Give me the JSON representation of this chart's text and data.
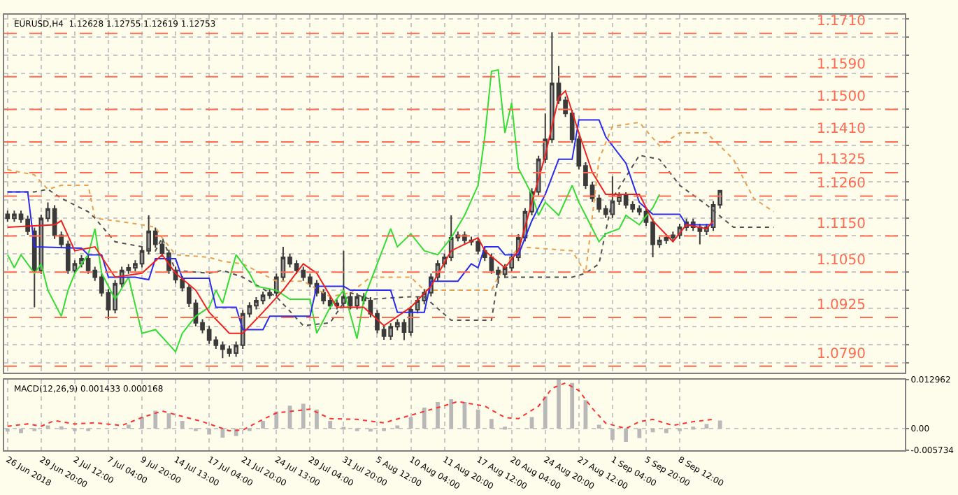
{
  "chart_data": [
    {
      "type": "candlestick",
      "title": "EURUSD,H4  1.12628 1.12755 1.12619 1.12753",
      "color": "#3a3a3a",
      "grid": true,
      "tick_labels": false,
      "ylim": [
        1.0772,
        1.1761
      ],
      "categories": [
        null,
        null,
        null,
        null,
        null,
        null,
        null,
        null,
        null,
        null,
        null,
        null,
        null,
        null,
        null,
        null,
        null,
        null,
        null,
        null,
        null,
        null,
        null,
        null,
        null,
        null,
        null,
        null,
        null,
        null,
        null,
        null,
        null,
        null,
        null,
        null,
        null,
        null,
        null,
        null,
        null,
        null,
        null,
        null,
        null,
        null,
        null,
        null,
        null,
        null,
        null,
        null,
        null,
        null,
        null,
        null,
        null,
        null,
        null,
        null,
        null,
        null,
        null,
        null,
        null,
        null,
        null,
        null,
        null,
        null,
        null,
        null,
        null,
        null,
        null,
        null,
        null,
        null,
        null,
        null,
        null,
        null,
        null,
        null,
        null,
        null,
        null,
        null,
        null,
        null,
        null,
        null,
        null,
        null,
        null,
        null,
        null,
        null,
        null,
        null,
        null,
        null,
        null,
        null,
        null,
        null,
        null,
        null,
        null,
        null,
        null,
        null,
        null,
        null,
        null,
        null,
        null,
        null,
        null,
        null,
        null,
        null,
        null,
        null,
        null,
        null,
        null,
        null,
        null,
        null,
        null,
        null,
        null,
        null
      ],
      "ohlc": [
        [
          1.121,
          1.122,
          1.1189,
          1.1199
        ],
        [
          1.1199,
          1.122,
          1.1189,
          1.121
        ],
        [
          1.121,
          1.122,
          1.1186,
          1.1196
        ],
        [
          1.1196,
          1.1206,
          1.1153,
          1.1163
        ],
        [
          1.1163,
          1.1173,
          1.0953,
          1.1055
        ],
        [
          1.1055,
          1.1209,
          1.1045,
          1.1199
        ],
        [
          1.1199,
          1.1243,
          1.1189,
          1.1225
        ],
        [
          1.1225,
          1.1235,
          1.1142,
          1.1152
        ],
        [
          1.1152,
          1.1162,
          1.1117,
          1.1127
        ],
        [
          1.1127,
          1.1137,
          1.1045,
          1.1055
        ],
        [
          1.1055,
          1.1083,
          1.1045,
          1.1073
        ],
        [
          1.1073,
          1.1097,
          1.1063,
          1.1087
        ],
        [
          1.1087,
          1.1097,
          1.1045,
          1.1055
        ],
        [
          1.1055,
          1.1065,
          1.1026,
          1.1036
        ],
        [
          1.1036,
          1.1046,
          1.0983,
          1.0993
        ],
        [
          1.0993,
          1.1003,
          1.092,
          1.0946
        ],
        [
          1.0946,
          1.1028,
          1.0936,
          1.1018
        ],
        [
          1.1018,
          1.1065,
          1.1008,
          1.1055
        ],
        [
          1.1055,
          1.1072,
          1.1045,
          1.1062
        ],
        [
          1.1062,
          1.1083,
          1.1052,
          1.1073
        ],
        [
          1.1073,
          1.1119,
          1.1063,
          1.1109
        ],
        [
          1.1109,
          1.1207,
          1.1099,
          1.1163
        ],
        [
          1.1163,
          1.1173,
          1.1117,
          1.1127
        ],
        [
          1.1127,
          1.1137,
          1.1092,
          1.1102
        ],
        [
          1.1102,
          1.1112,
          1.1045,
          1.1055
        ],
        [
          1.1055,
          1.1065,
          1.1019,
          1.1029
        ],
        [
          1.1029,
          1.1039,
          1.0997,
          1.1007
        ],
        [
          1.1007,
          1.1017,
          1.0954,
          1.0964
        ],
        [
          1.0964,
          1.0974,
          1.09,
          1.091
        ],
        [
          1.091,
          1.092,
          1.0881,
          1.0891
        ],
        [
          1.0891,
          1.0901,
          1.0852,
          1.0862
        ],
        [
          1.0862,
          1.0872,
          1.0838,
          1.0848
        ],
        [
          1.0848,
          1.0858,
          1.0812,
          1.0837
        ],
        [
          1.0837,
          1.0847,
          1.0816,
          1.0826
        ],
        [
          1.0826,
          1.0858,
          1.0816,
          1.0848
        ],
        [
          1.0848,
          1.0945,
          1.0838,
          1.0935
        ],
        [
          1.0935,
          1.0967,
          1.0925,
          1.0957
        ],
        [
          1.0957,
          1.0981,
          1.0947,
          1.0971
        ],
        [
          1.0971,
          1.0996,
          1.0961,
          1.0986
        ],
        [
          1.0986,
          1.1003,
          1.0976,
          1.0993
        ],
        [
          1.0993,
          1.1046,
          1.0983,
          1.1036
        ],
        [
          1.1036,
          1.112,
          1.1026,
          1.1091
        ],
        [
          1.1091,
          1.1101,
          1.1063,
          1.1073
        ],
        [
          1.1073,
          1.1083,
          1.1045,
          1.1055
        ],
        [
          1.1055,
          1.1065,
          1.1026,
          1.1036
        ],
        [
          1.1036,
          1.1046,
          1.1008,
          1.1018
        ],
        [
          1.1018,
          1.1028,
          1.0983,
          1.0993
        ],
        [
          1.0993,
          1.1003,
          1.0961,
          1.0971
        ],
        [
          1.0971,
          1.0981,
          1.0947,
          1.0957
        ],
        [
          1.0957,
          1.0974,
          1.0947,
          1.0964
        ],
        [
          1.0964,
          1.1109,
          1.0954,
          1.0982
        ],
        [
          1.0982,
          1.0992,
          1.0947,
          1.0957
        ],
        [
          1.0957,
          1.0992,
          1.0947,
          1.0982
        ],
        [
          1.0982,
          1.0992,
          1.0961,
          1.0971
        ],
        [
          1.0971,
          1.0981,
          1.0925,
          1.0935
        ],
        [
          1.0935,
          1.0945,
          1.0881,
          1.0891
        ],
        [
          1.0891,
          1.0901,
          1.0863,
          1.0873
        ],
        [
          1.0873,
          1.0909,
          1.0863,
          1.0899
        ],
        [
          1.0899,
          1.092,
          1.0889,
          1.091
        ],
        [
          1.091,
          1.092,
          1.0862,
          1.0884
        ],
        [
          1.0884,
          1.0956,
          1.0874,
          1.0946
        ],
        [
          1.0946,
          1.0981,
          1.0936,
          1.0971
        ],
        [
          1.0971,
          1.1003,
          1.0961,
          1.0993
        ],
        [
          1.0993,
          1.1046,
          1.0983,
          1.1036
        ],
        [
          1.1036,
          1.1083,
          1.1026,
          1.1073
        ],
        [
          1.1073,
          1.1101,
          1.1063,
          1.1091
        ],
        [
          1.1091,
          1.1207,
          1.1081,
          1.1145
        ],
        [
          1.1145,
          1.1162,
          1.1135,
          1.1152
        ],
        [
          1.1152,
          1.1162,
          1.1128,
          1.1138
        ],
        [
          1.1138,
          1.1148,
          1.1124,
          1.1134
        ],
        [
          1.1134,
          1.1144,
          1.1099,
          1.1109
        ],
        [
          1.1109,
          1.1119,
          1.1081,
          1.1091
        ],
        [
          1.1091,
          1.1101,
          1.1045,
          1.1055
        ],
        [
          1.1055,
          1.1065,
          1.1018,
          1.1044
        ],
        [
          1.1044,
          1.1072,
          1.1034,
          1.1062
        ],
        [
          1.1062,
          1.1101,
          1.1052,
          1.1091
        ],
        [
          1.1091,
          1.1155,
          1.1081,
          1.1145
        ],
        [
          1.1145,
          1.1227,
          1.1135,
          1.1217
        ],
        [
          1.1217,
          1.1282,
          1.1207,
          1.1272
        ],
        [
          1.1272,
          1.1372,
          1.1262,
          1.1362
        ],
        [
          1.1362,
          1.1489,
          1.1352,
          1.1417
        ],
        [
          1.1417,
          1.1713,
          1.1407,
          1.1572
        ],
        [
          1.1572,
          1.162,
          1.1515,
          1.1525
        ],
        [
          1.1525,
          1.1535,
          1.1479,
          1.1489
        ],
        [
          1.1489,
          1.1499,
          1.1407,
          1.1417
        ],
        [
          1.1417,
          1.1427,
          1.1334,
          1.1344
        ],
        [
          1.1344,
          1.1354,
          1.128,
          1.129
        ],
        [
          1.129,
          1.13,
          1.1244,
          1.1254
        ],
        [
          1.1254,
          1.1264,
          1.1215,
          1.1225
        ],
        [
          1.1225,
          1.1235,
          1.12,
          1.121
        ],
        [
          1.121,
          1.1315,
          1.12,
          1.1246
        ],
        [
          1.1246,
          1.1271,
          1.1236,
          1.1261
        ],
        [
          1.1261,
          1.1271,
          1.1226,
          1.1236
        ],
        [
          1.1236,
          1.1246,
          1.1215,
          1.1225
        ],
        [
          1.1225,
          1.1235,
          1.1207,
          1.1217
        ],
        [
          1.1217,
          1.1227,
          1.1178,
          1.1188
        ],
        [
          1.1188,
          1.1198,
          1.1091,
          1.1127
        ],
        [
          1.1127,
          1.1148,
          1.1117,
          1.1138
        ],
        [
          1.1138,
          1.1155,
          1.1128,
          1.1145
        ],
        [
          1.1145,
          1.1162,
          1.1135,
          1.1152
        ],
        [
          1.1152,
          1.1184,
          1.1142,
          1.1174
        ],
        [
          1.1174,
          1.1198,
          1.1164,
          1.1188
        ],
        [
          1.1188,
          1.1198,
          1.1164,
          1.1174
        ],
        [
          1.1174,
          1.1184,
          1.1127,
          1.1163
        ],
        [
          1.1163,
          1.1184,
          1.1153,
          1.1174
        ],
        [
          1.1174,
          1.1246,
          1.1164,
          1.1236
        ],
        [
          1.1236,
          1.1276,
          1.1226,
          1.1275
        ],
        null,
        null,
        null,
        null,
        null,
        null,
        null,
        null,
        null,
        null,
        null,
        null,
        null,
        null,
        null,
        null,
        null,
        null,
        null,
        null,
        null,
        null,
        null,
        null,
        null,
        null,
        null
      ],
      "series": [
        {
          "type": "line",
          "color": "#e8a050",
          "line_style": "dotted",
          "values": [
            1.1333,
            null,
            null,
            null,
            1.1319,
            null,
            1.1279,
            null,
            1.129,
            null,
            null,
            null,
            1.129,
            1.1199,
            null,
            null,
            1.1192,
            null,
            null,
            null,
            1.1181,
            null,
            1.1174,
            1.1145,
            null,
            1.1098,
            null,
            null,
            null,
            null,
            1.1091,
            null,
            1.108,
            null,
            null,
            1.1073,
            null,
            null,
            null,
            null,
            1.1025,
            null,
            null,
            null,
            1.1025,
            null,
            null,
            null,
            1.0982,
            null,
            null,
            1.0993,
            null,
            null,
            1.1036,
            null,
            null,
            null,
            null,
            null,
            1.1036,
            null,
            1.1,
            null,
            null,
            null,
            1.1,
            null,
            null,
            null,
            null,
            null,
            1.1,
            1.1036,
            null,
            null,
            1.112,
            null,
            null,
            null,
            null,
            null,
            null,
            null,
            1.1109,
            null,
            1.1047,
            null,
            1.1362,
            null,
            1.1453,
            null,
            null,
            null,
            1.1464,
            null,
            null,
            1.1399,
            null,
            null,
            1.1435,
            null,
            null,
            null,
            1.1435,
            null,
            null,
            null,
            1.1362,
            null,
            null,
            1.1254,
            null,
            null,
            1.1217,
            null,
            null,
            null,
            null,
            null,
            null,
            null,
            null,
            null,
            null,
            null,
            null,
            null,
            null,
            null,
            null,
            null,
            null,
            null
          ]
        },
        {
          "type": "line",
          "color": "#505050",
          "line_style": "dotted",
          "values": [
            1.1272,
            null,
            null,
            null,
            1.1272,
            null,
            1.1279,
            null,
            1.1254,
            null,
            null,
            null,
            1.1217,
            1.1199,
            null,
            null,
            1.1134,
            null,
            null,
            null,
            1.112,
            null,
            1.1109,
            1.1145,
            null,
            1.1055,
            null,
            null,
            null,
            null,
            1.1047,
            null,
            1.1055,
            null,
            null,
            1.1036,
            null,
            null,
            null,
            null,
            1.0982,
            null,
            null,
            null,
            1.0902,
            null,
            null,
            null,
            1.091,
            null,
            null,
            1.0993,
            null,
            null,
            1.0975,
            null,
            null,
            null,
            null,
            null,
            1.0982,
            null,
            1.0982,
            null,
            null,
            null,
            1.0917,
            null,
            null,
            null,
            null,
            null,
            1.0917,
            1.1036,
            null,
            null,
            1.1036,
            null,
            null,
            null,
            null,
            null,
            null,
            null,
            1.1036,
            null,
            1.1047,
            null,
            1.1073,
            null,
            1.1254,
            null,
            null,
            null,
            1.1373,
            null,
            null,
            1.1362,
            null,
            null,
            1.129,
            null,
            null,
            null,
            1.1236,
            null,
            null,
            null,
            1.1174,
            null,
            null,
            1.1174,
            null,
            null,
            1.1174,
            null,
            null,
            null,
            null,
            null,
            null,
            null,
            null,
            null,
            null,
            null,
            null,
            null,
            null,
            null,
            null,
            null,
            null,
            null
          ]
        },
        {
          "type": "line",
          "color": "#33dd33",
          "line_style": "solid",
          "values": [
            1.1098,
            1.1062,
            1.1098,
            null,
            1.1047,
            1.1073,
            1.1,
            null,
            1.0928,
            1.1,
            1.1047,
            null,
            1.1098,
            1.117,
            1.1047,
            null,
            1.0975,
            null,
            1.1036,
            null,
            1.0881,
            null,
            1.0891,
            null,
            null,
            1.083,
            1.0881,
            null,
            1.0928,
            null,
            1.0953,
            1.1,
            1.0964,
            null,
            1.1098,
            null,
            1.1047,
            1.1011,
            null,
            null,
            1.1,
            null,
            1.0975,
            null,
            null,
            1.0975,
            1.0881,
            null,
            1.0953,
            null,
            1.1,
            null,
            1.0866,
            1.0975,
            null,
            1.1073,
            null,
            1.117,
            1.112,
            null,
            1.1156,
            null,
            1.1109,
            null,
            1.1098,
            null,
            1.1145,
            null,
            1.1207,
            null,
            1.129,
            1.1424,
            1.1605,
            1.1609,
            1.1435,
            1.1518,
            1.1337,
            null,
            1.1265,
            1.1207,
            1.1243,
            null,
            1.1207,
            null,
            1.129,
            1.1243,
            1.1207,
            null,
            1.1134,
            1.1156,
            null,
            1.117,
            1.1207,
            null,
            1.1181,
            null,
            1.1228,
            1.1265,
            null,
            null,
            null,
            null,
            null,
            null,
            null,
            null,
            null,
            null,
            null,
            null,
            null,
            null,
            null,
            null,
            null,
            null,
            null,
            null,
            null,
            null,
            null,
            null,
            null,
            null,
            null,
            null,
            null,
            null,
            null,
            null,
            null,
            null,
            null,
            null
          ]
        },
        {
          "type": "line",
          "color": "#2a2af0",
          "line_style": "solid",
          "values": [
            1.1272,
            null,
            null,
            1.1272,
            1.112,
            null,
            null,
            null,
            null,
            null,
            null,
            1.1116,
            1.1098,
            null,
            1.1098,
            1.1036,
            null,
            null,
            null,
            1.1036,
            null,
            1.1029,
            1.1087,
            null,
            null,
            1.1087,
            1.1033,
            null,
            null,
            null,
            1.1033,
            1.0953,
            null,
            null,
            1.0953,
            1.0891,
            null,
            null,
            1.0891,
            1.0928,
            null,
            null,
            null,
            null,
            null,
            1.0928,
            1.1011,
            null,
            null,
            null,
            1.1011,
            1.1,
            null,
            null,
            null,
            null,
            null,
            1.1,
            1.0939,
            null,
            null,
            null,
            1.0939,
            1.1025,
            null,
            null,
            null,
            1.1025,
            null,
            1.1073,
            1.1062,
            1.112,
            null,
            1.112,
            1.1098,
            null,
            1.1098,
            null,
            1.1192,
            null,
            1.1265,
            null,
            1.1362,
            null,
            1.1362,
            1.1471,
            null,
            null,
            1.1471,
            1.1424,
            null,
            null,
            1.1351,
            null,
            1.1243,
            null,
            1.121,
            null,
            null,
            null,
            1.121,
            1.1181,
            null,
            null,
            null,
            1.1181,
            null,
            null,
            null,
            null,
            null,
            null,
            null,
            null,
            null,
            null,
            null,
            null,
            null,
            null,
            null,
            null,
            null,
            null,
            null,
            null,
            null,
            null,
            null,
            null,
            null,
            null,
            null,
            null
          ]
        },
        {
          "type": "line",
          "color": "#f02020",
          "line_style": "solid",
          "values": [
            1.1174,
            null,
            null,
            null,
            null,
            null,
            null,
            1.1181,
            1.1192,
            null,
            1.1109,
            null,
            null,
            1.112,
            null,
            null,
            1.1036,
            null,
            null,
            null,
            1.1047,
            null,
            null,
            1.1098,
            null,
            1.1047,
            null,
            null,
            1.1,
            null,
            1.0939,
            null,
            null,
            1.0881,
            null,
            1.0881,
            null,
            null,
            1.0939,
            null,
            null,
            1.1,
            null,
            null,
            1.1073,
            null,
            1.1047,
            null,
            null,
            1.0953,
            null,
            null,
            null,
            1.0953,
            null,
            null,
            1.0902,
            null,
            null,
            null,
            1.0953,
            null,
            null,
            1.1011,
            null,
            null,
            1.1109,
            null,
            null,
            null,
            1.1145,
            1.1109,
            null,
            null,
            1.1062,
            null,
            1.1109,
            null,
            1.1243,
            null,
            1.1373,
            null,
            1.1533,
            1.1551,
            null,
            1.1435,
            null,
            1.1326,
            null,
            1.1265,
            null,
            null,
            1.1265,
            null,
            1.1265,
            null,
            1.1192,
            null,
            null,
            1.1134,
            null,
            1.1181,
            null,
            null,
            1.117,
            1.1192,
            null,
            null,
            null,
            null,
            null,
            null,
            null,
            null,
            null,
            null,
            null,
            null,
            null,
            null,
            null,
            null,
            null,
            null,
            null,
            null,
            null,
            null,
            null,
            null,
            null,
            null,
            null,
            null
          ]
        }
      ],
      "ref_lines": [
        {
          "axis": "y",
          "value": 1.171,
          "label": "1.1710",
          "color": "#ff6a50",
          "line_style": "dashed"
        },
        {
          "axis": "y",
          "value": 1.159,
          "label": "1.1590",
          "color": "#ff6a50",
          "line_style": "dashed"
        },
        {
          "axis": "y",
          "value": 1.15,
          "label": "1.1500",
          "color": "#ff6a50",
          "line_style": "dashed"
        },
        {
          "axis": "y",
          "value": 1.141,
          "label": "1.1410",
          "color": "#ff6a50",
          "line_style": "dashed"
        },
        {
          "axis": "y",
          "value": 1.1325,
          "label": "1.1325",
          "color": "#ff6a50",
          "line_style": "dashed"
        },
        {
          "axis": "y",
          "value": 1.126,
          "label": "1.1260",
          "color": "#ff6a50",
          "line_style": "dashed"
        },
        {
          "axis": "y",
          "value": 1.115,
          "label": "1.1150",
          "color": "#ff6a50",
          "line_style": "dashed"
        },
        {
          "axis": "y",
          "value": 1.105,
          "label": "1.1050",
          "color": "#ff6a50",
          "line_style": "dashed"
        },
        {
          "axis": "y",
          "value": 1.0925,
          "label": "1.0925",
          "color": "#ff6a50",
          "line_style": "dashed"
        },
        {
          "axis": "y",
          "value": 1.079,
          "label": "1.0790",
          "color": "#ff6a50",
          "line_style": "dashed"
        }
      ]
    },
    {
      "type": "bar",
      "title": "MACD(12,26,9) 0.001433 0.000168",
      "grid": true,
      "ylim": [
        -0.005734,
        0.012962
      ],
      "yticks": [
        0.012962,
        {
          "value": 0,
          "label": "0.00"
        },
        -0.005734
      ],
      "categories": [
        "26 Jun 2018",
        null,
        null,
        null,
        null,
        "29 Jun 20:00",
        null,
        null,
        null,
        null,
        "2 Jul 12:00",
        null,
        null,
        null,
        null,
        "7 Jul 04:00",
        null,
        null,
        null,
        null,
        "9 Jul 20:00",
        null,
        null,
        null,
        null,
        "14 Jul 13:00",
        null,
        null,
        null,
        null,
        "17 Jul 04:00",
        null,
        null,
        null,
        null,
        "21 Jul 20:00",
        null,
        null,
        null,
        null,
        "24 Jul 13:00",
        null,
        null,
        null,
        null,
        "29 Jul 04:00",
        null,
        null,
        null,
        null,
        "31 Jul 20:00",
        null,
        null,
        null,
        null,
        "5 Aug 12:00",
        null,
        null,
        null,
        null,
        "10 Aug 04:00",
        null,
        null,
        null,
        null,
        "11 Aug 20:00",
        null,
        null,
        null,
        null,
        "17 Aug 12:00",
        null,
        null,
        null,
        null,
        "20 Aug 04:00",
        null,
        null,
        null,
        null,
        "24 Aug 20:00",
        null,
        null,
        null,
        null,
        "27 Aug 12:00",
        null,
        null,
        null,
        null,
        "1 Sep 04:00",
        null,
        null,
        null,
        null,
        "5 Sep 20:00",
        null,
        null,
        null,
        null,
        "8 Sep 12:00",
        null,
        null,
        null,
        null,
        null,
        null,
        null,
        null,
        null,
        null,
        null,
        null,
        null,
        null,
        null,
        null,
        null,
        null,
        null,
        null,
        null,
        null,
        null,
        null,
        null,
        null,
        null,
        null,
        null,
        null,
        null,
        null,
        null
      ],
      "series": [
        {
          "type": "bar",
          "color": "#b8b8b8",
          "values": [
            -0.0008,
            null,
            -0.0012,
            null,
            -0.0004,
            null,
            0.0008,
            null,
            0.0006,
            null,
            -0.0004,
            null,
            -0.0006,
            null,
            0.0,
            null,
            null,
            null,
            0.001,
            null,
            0.003,
            null,
            0.0047,
            null,
            0.004,
            null,
            0.002,
            null,
            -0.0004,
            null,
            -0.0016,
            null,
            -0.0024,
            null,
            -0.002,
            null,
            -0.0004,
            null,
            0.002,
            null,
            0.0045,
            null,
            0.006,
            null,
            0.0065,
            null,
            0.005,
            null,
            0.002,
            null,
            0.0002,
            null,
            -0.0006,
            null,
            -0.0008,
            null,
            -0.0004,
            null,
            0.0008,
            null,
            0.003,
            null,
            0.0055,
            null,
            0.007,
            null,
            0.0077,
            null,
            0.007,
            null,
            0.005,
            null,
            0.0025,
            null,
            0.0005,
            null,
            0.0,
            null,
            0.003,
            null,
            0.0085,
            null,
            0.0129,
            null,
            0.012,
            null,
            0.0075,
            null,
            0.001,
            null,
            -0.003,
            null,
            -0.0035,
            null,
            -0.0025,
            null,
            -0.001,
            null,
            -0.0012,
            null,
            -0.0005,
            null,
            0.0005,
            null,
            0.0012,
            null,
            0.0021,
            null,
            null,
            null,
            null,
            null,
            null,
            null,
            null,
            null,
            null,
            null,
            null,
            null,
            null,
            null,
            null,
            null,
            null,
            null,
            null,
            null,
            null,
            null,
            null,
            null,
            null,
            null
          ]
        },
        {
          "type": "line",
          "color": "#ff3030",
          "line_style": "dotted",
          "values": [
            0.0006,
            null,
            null,
            0.0012,
            null,
            0.0006,
            null,
            0.0021,
            null,
            null,
            0.0012,
            null,
            null,
            0.0015,
            null,
            null,
            null,
            0.0008,
            null,
            null,
            0.0029,
            null,
            null,
            0.0046,
            null,
            null,
            0.0032,
            null,
            null,
            0.0018,
            null,
            null,
            null,
            -0.0006,
            null,
            -0.0004,
            null,
            null,
            0.0024,
            null,
            0.0041,
            null,
            null,
            0.0047,
            null,
            0.0051,
            null,
            null,
            0.0026,
            null,
            null,
            null,
            0.0024,
            null,
            null,
            null,
            0.0015,
            null,
            null,
            null,
            0.0035,
            null,
            null,
            null,
            0.0055,
            null,
            null,
            0.0071,
            null,
            null,
            null,
            0.0059,
            null,
            null,
            0.0029,
            null,
            0.0026,
            null,
            null,
            0.0059,
            null,
            0.0106,
            null,
            0.012,
            null,
            0.01,
            null,
            0.0053,
            null,
            0.0014,
            null,
            null,
            0.0,
            null,
            0.0018,
            null,
            0.0024,
            null,
            null,
            0.0008,
            null,
            null,
            0.0018,
            null,
            null,
            0.0024,
            null,
            null,
            null,
            null,
            null,
            null,
            null,
            null,
            null,
            null,
            null,
            null,
            null,
            null,
            null,
            null,
            null,
            null,
            null,
            null,
            null,
            null,
            null,
            null,
            null,
            null,
            null,
            null
          ]
        }
      ]
    }
  ]
}
